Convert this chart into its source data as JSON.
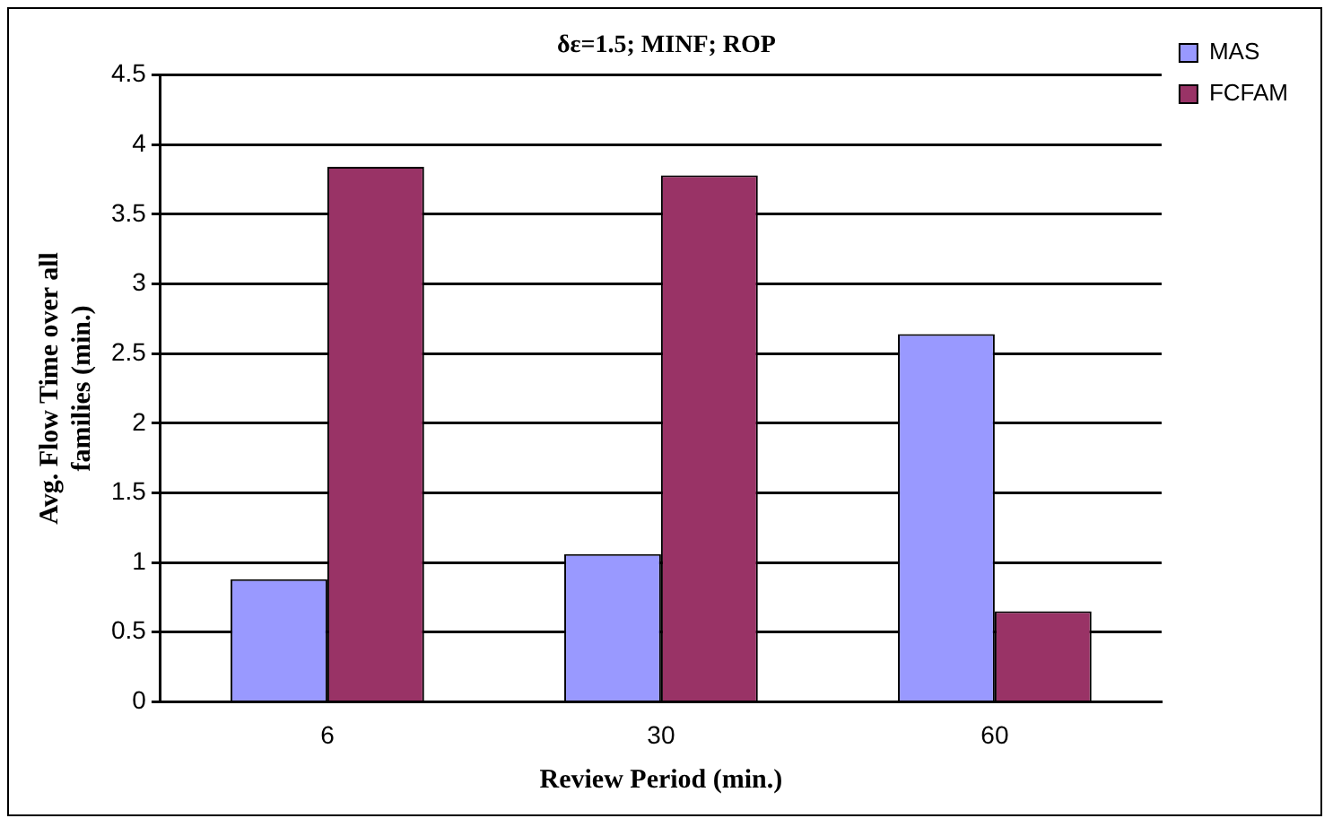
{
  "chart_data": {
    "type": "bar",
    "title": "δε=1.5; MINF; ROP",
    "xlabel": "Review Period (min.)",
    "ylabel": "Avg. Flow Time over all families (min.)",
    "categories": [
      "6",
      "30",
      "60"
    ],
    "series": [
      {
        "name": "MAS",
        "color": "#9999ff",
        "values": [
          0.88,
          1.06,
          2.64
        ]
      },
      {
        "name": "FCFAM",
        "color": "#993366",
        "values": [
          3.84,
          3.78,
          0.65
        ]
      }
    ],
    "ylim": [
      0,
      4.5
    ],
    "yticks": [
      0,
      0.5,
      1,
      1.5,
      2,
      2.5,
      3,
      3.5,
      4,
      4.5
    ],
    "grid": "y",
    "legend": "top right"
  }
}
